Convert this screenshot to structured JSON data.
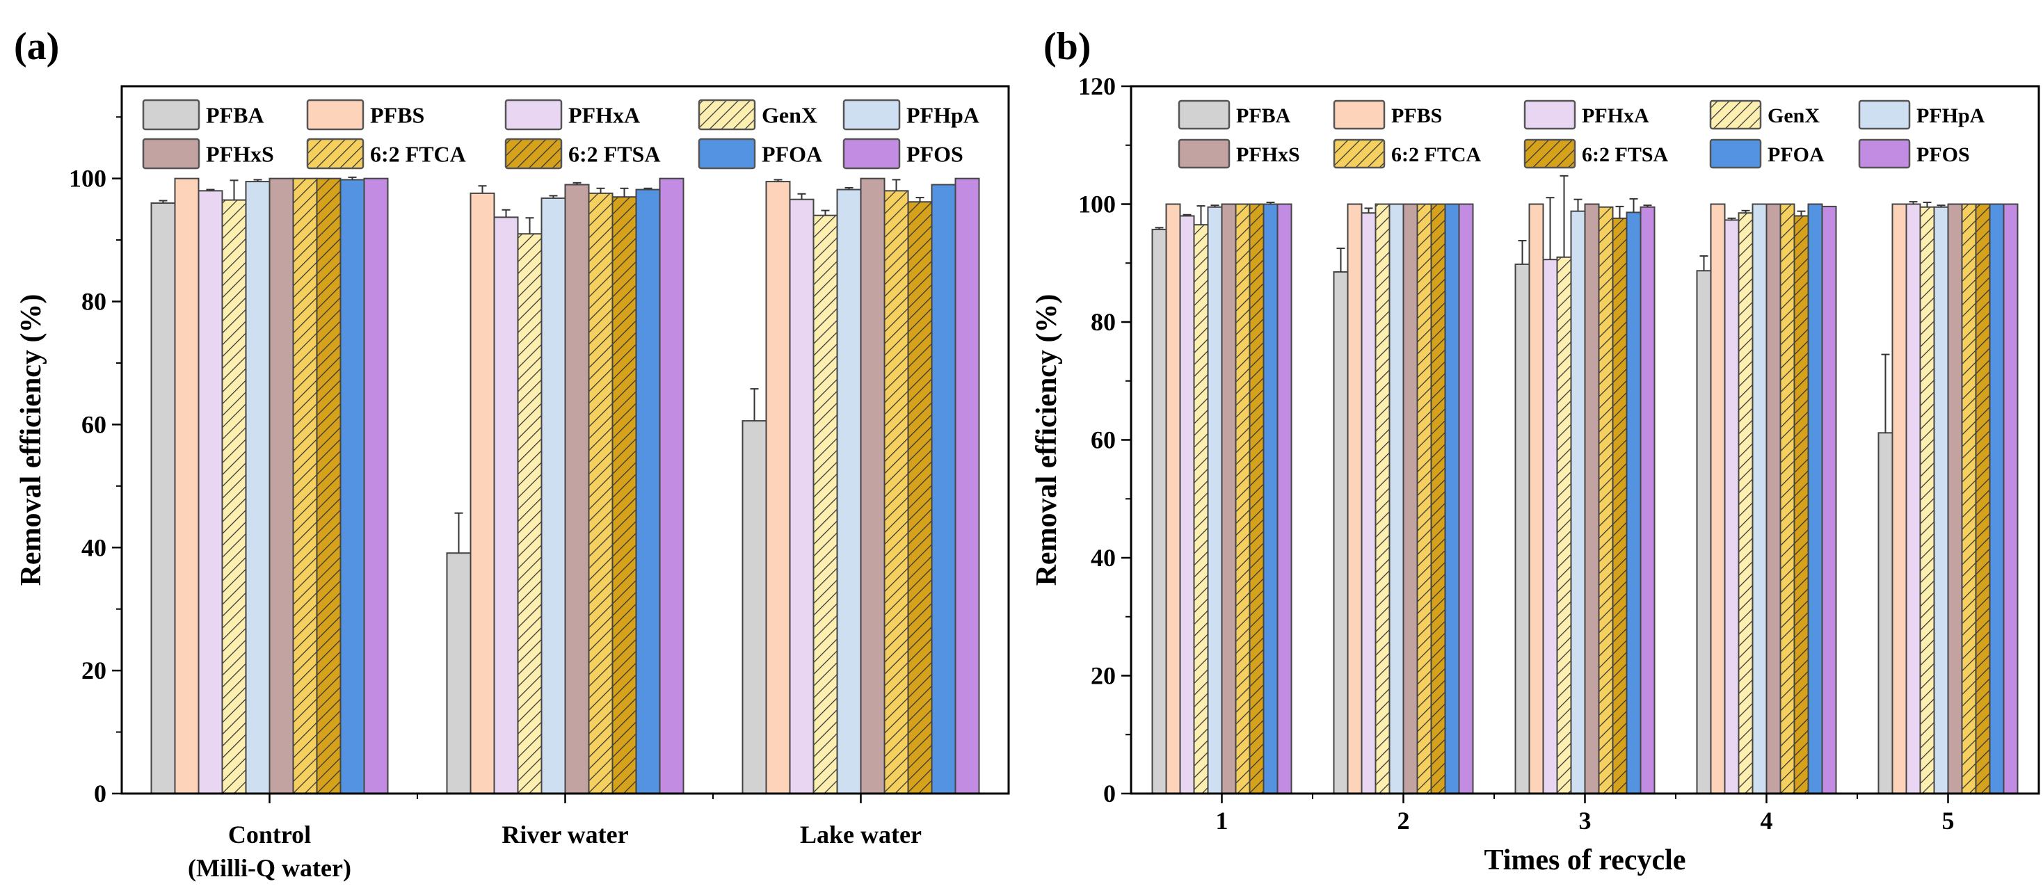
{
  "series_style": [
    {
      "name": "PFBA",
      "color": "#d2d2d2",
      "hatch": false
    },
    {
      "name": "PFBS",
      "color": "#fdd3ba",
      "hatch": false
    },
    {
      "name": "PFHxA",
      "color": "#e8d6f2",
      "hatch": false
    },
    {
      "name": "GenX",
      "color": "#fcefb0",
      "hatch": true
    },
    {
      "name": "PFHpA",
      "color": "#cfdff2",
      "hatch": false
    },
    {
      "name": "PFHxS",
      "color": "#c3a2a2",
      "hatch": false
    },
    {
      "name": "6:2 FTCA",
      "color": "#f6d05e",
      "hatch": true
    },
    {
      "name": "6:2 FTSA",
      "color": "#d6a21c",
      "hatch": true
    },
    {
      "name": "PFOA",
      "color": "#5393e2",
      "hatch": false
    },
    {
      "name": "PFOS",
      "color": "#c28ce2",
      "hatch": false
    }
  ],
  "chart_data": [
    {
      "type": "bar",
      "panel_label": "(a)",
      "title": "",
      "xlabel": "",
      "ylabel": "Removal efficiency (%)",
      "ylim": [
        0,
        115
      ],
      "yticks": [
        0,
        20,
        40,
        60,
        80,
        100
      ],
      "legend": "top",
      "categories": [
        "Control",
        "River water",
        "Lake water"
      ],
      "category_sublabels": [
        "(Milli-Q water)",
        "",
        ""
      ],
      "series": [
        {
          "name": "PFBA",
          "values": [
            96.0,
            39.1,
            60.6
          ],
          "errors": [
            0.4,
            6.5,
            5.2
          ]
        },
        {
          "name": "PFBS",
          "values": [
            100.0,
            97.6,
            99.5
          ],
          "errors": [
            0,
            1.2,
            0.3
          ]
        },
        {
          "name": "PFHxA",
          "values": [
            98.0,
            93.7,
            96.6
          ],
          "errors": [
            0.2,
            1.2,
            0.9
          ]
        },
        {
          "name": "GenX",
          "values": [
            96.5,
            91.0,
            94.0
          ],
          "errors": [
            3.2,
            2.6,
            0.8
          ]
        },
        {
          "name": "PFHpA",
          "values": [
            99.5,
            96.8,
            98.2
          ],
          "errors": [
            0.3,
            0.4,
            0.3
          ]
        },
        {
          "name": "PFHxS",
          "values": [
            100.0,
            99.0,
            100.0
          ],
          "errors": [
            0,
            0.3,
            0
          ]
        },
        {
          "name": "6:2 FTCA",
          "values": [
            100.0,
            97.6,
            98.0
          ],
          "errors": [
            0,
            0.8,
            1.8
          ]
        },
        {
          "name": "6:2 FTSA",
          "values": [
            100.0,
            97.0,
            96.2
          ],
          "errors": [
            0,
            1.4,
            0.7
          ]
        },
        {
          "name": "PFOA",
          "values": [
            99.8,
            98.2,
            99.0
          ],
          "errors": [
            0.4,
            0.2,
            0
          ]
        },
        {
          "name": "PFOS",
          "values": [
            100.0,
            100.0,
            100.0
          ],
          "errors": [
            0,
            0,
            0
          ]
        }
      ]
    },
    {
      "type": "bar",
      "panel_label": "(b)",
      "title": "",
      "xlabel": "Times of recycle",
      "ylabel": "Removal efficiency (%)",
      "ylim": [
        0,
        120
      ],
      "yticks": [
        0,
        20,
        40,
        60,
        80,
        100,
        120
      ],
      "legend": "top",
      "categories": [
        "1",
        "2",
        "3",
        "4",
        "5"
      ],
      "category_sublabels": [
        "",
        "",
        "",
        "",
        ""
      ],
      "series": [
        {
          "name": "PFBA",
          "values": [
            95.7,
            88.5,
            89.8,
            88.7,
            61.2
          ],
          "errors": [
            0.3,
            4.0,
            4.0,
            2.5,
            13.3
          ]
        },
        {
          "name": "PFBS",
          "values": [
            100,
            100,
            100,
            100,
            100
          ],
          "errors": [
            0,
            0,
            0,
            0,
            0
          ]
        },
        {
          "name": "PFHxA",
          "values": [
            98.0,
            98.5,
            90.6,
            97.3,
            100
          ],
          "errors": [
            0.2,
            0.8,
            10.5,
            0.3,
            0.4
          ]
        },
        {
          "name": "GenX",
          "values": [
            96.5,
            100,
            91.0,
            98.5,
            99.5
          ],
          "errors": [
            3.2,
            0,
            13.8,
            0.4,
            0.8
          ]
        },
        {
          "name": "PFHpA",
          "values": [
            99.5,
            100,
            98.8,
            100,
            99.5
          ],
          "errors": [
            0.3,
            0,
            2.0,
            0,
            0.3
          ]
        },
        {
          "name": "PFHxS",
          "values": [
            100,
            100,
            100,
            100,
            100
          ],
          "errors": [
            0,
            0,
            0,
            0,
            0
          ]
        },
        {
          "name": "6:2 FTCA",
          "values": [
            100,
            100,
            99.5,
            100,
            100
          ],
          "errors": [
            0,
            0,
            0,
            0,
            0
          ]
        },
        {
          "name": "6:2 FTSA",
          "values": [
            100,
            100,
            97.6,
            98.0,
            100
          ],
          "errors": [
            0,
            0,
            2.0,
            0.8,
            0
          ]
        },
        {
          "name": "PFOA",
          "values": [
            100,
            100,
            98.6,
            100,
            100
          ],
          "errors": [
            0.3,
            0,
            2.3,
            0,
            0
          ]
        },
        {
          "name": "PFOS",
          "values": [
            100,
            100,
            99.5,
            99.6,
            100
          ],
          "errors": [
            0,
            0,
            0.3,
            0,
            0
          ]
        }
      ]
    }
  ]
}
